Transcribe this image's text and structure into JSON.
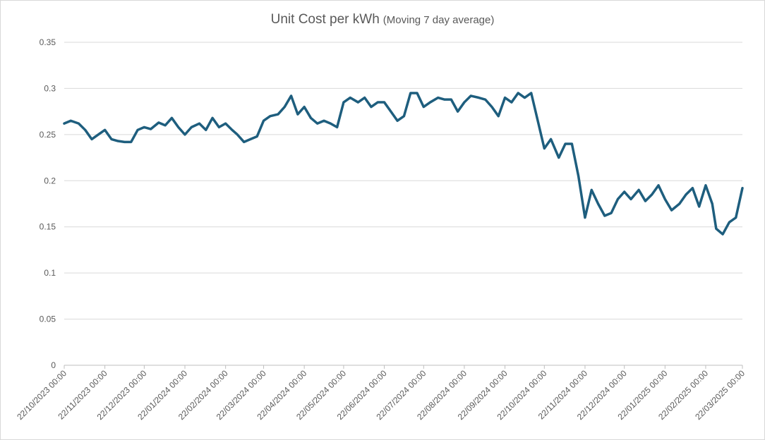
{
  "chart_data": {
    "type": "line",
    "title": "Unit Cost per kWh",
    "subtitle": "(Moving 7 day average)",
    "x": [
      "22/10/2023 00:00",
      "27/10/2023 00:00",
      "02/11/2023 00:00",
      "07/11/2023 00:00",
      "12/11/2023 00:00",
      "17/11/2023 00:00",
      "22/11/2023 00:00",
      "27/11/2023 00:00",
      "02/12/2023 00:00",
      "07/12/2023 00:00",
      "12/12/2023 00:00",
      "17/12/2023 00:00",
      "22/12/2023 00:00",
      "27/12/2023 00:00",
      "02/01/2024 00:00",
      "07/01/2024 00:00",
      "12/01/2024 00:00",
      "17/01/2024 00:00",
      "22/01/2024 00:00",
      "27/01/2024 00:00",
      "02/02/2024 00:00",
      "07/02/2024 00:00",
      "12/02/2024 00:00",
      "17/02/2024 00:00",
      "22/02/2024 00:00",
      "27/02/2024 00:00",
      "02/03/2024 00:00",
      "07/03/2024 00:00",
      "12/03/2024 00:00",
      "17/03/2024 00:00",
      "22/03/2024 00:00",
      "27/03/2024 00:00",
      "02/04/2024 00:00",
      "07/04/2024 00:00",
      "12/04/2024 00:00",
      "17/04/2024 00:00",
      "22/04/2024 00:00",
      "27/04/2024 00:00",
      "02/05/2024 00:00",
      "07/05/2024 00:00",
      "12/05/2024 00:00",
      "17/05/2024 00:00",
      "22/05/2024 00:00",
      "27/05/2024 00:00",
      "02/06/2024 00:00",
      "07/06/2024 00:00",
      "12/06/2024 00:00",
      "17/06/2024 00:00",
      "22/06/2024 00:00",
      "27/06/2024 00:00",
      "02/07/2024 00:00",
      "07/07/2024 00:00",
      "12/07/2024 00:00",
      "17/07/2024 00:00",
      "22/07/2024 00:00",
      "27/07/2024 00:00",
      "02/08/2024 00:00",
      "07/08/2024 00:00",
      "12/08/2024 00:00",
      "17/08/2024 00:00",
      "22/08/2024 00:00",
      "27/08/2024 00:00",
      "02/09/2024 00:00",
      "07/09/2024 00:00",
      "12/09/2024 00:00",
      "17/09/2024 00:00",
      "22/09/2024 00:00",
      "27/09/2024 00:00",
      "02/10/2024 00:00",
      "07/10/2024 00:00",
      "12/10/2024 00:00",
      "17/10/2024 00:00",
      "22/10/2024 00:00",
      "27/10/2024 00:00",
      "02/11/2024 00:00",
      "07/11/2024 00:00",
      "12/11/2024 00:00",
      "17/11/2024 00:00",
      "22/11/2024 00:00",
      "27/11/2024 00:00",
      "02/12/2024 00:00",
      "07/12/2024 00:00",
      "12/12/2024 00:00",
      "17/12/2024 00:00",
      "22/12/2024 00:00",
      "27/12/2024 00:00",
      "02/01/2025 00:00",
      "07/01/2025 00:00",
      "12/01/2025 00:00",
      "17/01/2025 00:00",
      "22/01/2025 00:00",
      "27/01/2025 00:00",
      "02/02/2025 00:00",
      "07/02/2025 00:00",
      "12/02/2025 00:00",
      "17/02/2025 00:00",
      "22/02/2025 00:00",
      "27/02/2025 00:00",
      "02/03/2025 00:00",
      "07/03/2025 00:00",
      "12/03/2025 00:00",
      "17/03/2025 00:00",
      "22/03/2025 00:00"
    ],
    "series": [
      {
        "name": "Unit Cost per kWh",
        "color": "#1e5e7e",
        "values": [
          0.262,
          0.265,
          0.262,
          0.255,
          0.245,
          0.25,
          0.255,
          0.245,
          0.243,
          0.242,
          0.242,
          0.255,
          0.258,
          0.256,
          0.263,
          0.26,
          0.268,
          0.258,
          0.25,
          0.258,
          0.262,
          0.255,
          0.268,
          0.258,
          0.262,
          0.255,
          0.25,
          0.242,
          0.245,
          0.248,
          0.265,
          0.27,
          0.272,
          0.28,
          0.292,
          0.272,
          0.28,
          0.268,
          0.262,
          0.265,
          0.262,
          0.258,
          0.285,
          0.29,
          0.285,
          0.29,
          0.28,
          0.285,
          0.285,
          0.275,
          0.265,
          0.27,
          0.295,
          0.295,
          0.28,
          0.285,
          0.29,
          0.288,
          0.288,
          0.275,
          0.285,
          0.292,
          0.29,
          0.288,
          0.28,
          0.27,
          0.29,
          0.285,
          0.295,
          0.29,
          0.295,
          0.265,
          0.235,
          0.245,
          0.225,
          0.24,
          0.24,
          0.205,
          0.16,
          0.19,
          0.175,
          0.162,
          0.165,
          0.18,
          0.188,
          0.18,
          0.19,
          0.178,
          0.185,
          0.195,
          0.18,
          0.168,
          0.175,
          0.185,
          0.192,
          0.172,
          0.195,
          0.175,
          0.148,
          0.142,
          0.155,
          0.16,
          0.192
        ]
      }
    ],
    "xlim": [
      "22/10/2023 00:00",
      "22/03/2025 00:00"
    ],
    "xticks": [
      "22/10/2023 00:00",
      "22/11/2023 00:00",
      "22/12/2023 00:00",
      "22/01/2024 00:00",
      "22/02/2024 00:00",
      "22/03/2024 00:00",
      "22/04/2024 00:00",
      "22/05/2024 00:00",
      "22/06/2024 00:00",
      "22/07/2024 00:00",
      "22/08/2024 00:00",
      "22/09/2024 00:00",
      "22/10/2024 00:00",
      "22/11/2024 00:00",
      "22/12/2024 00:00",
      "22/01/2025 00:00",
      "22/02/2025 00:00",
      "22/03/2025 00:00"
    ],
    "ylim": [
      0,
      0.35
    ],
    "yticks": [
      0,
      0.05,
      0.1,
      0.15,
      0.2,
      0.25,
      0.3,
      0.35
    ],
    "grid": true
  }
}
